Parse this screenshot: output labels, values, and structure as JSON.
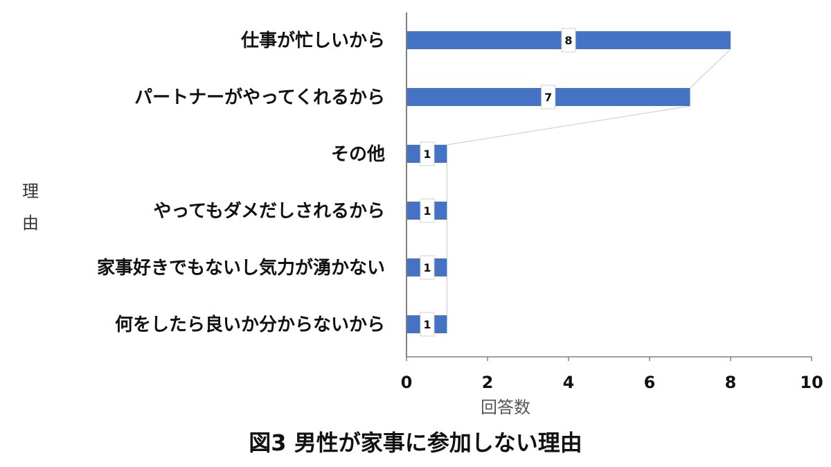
{
  "chart_data": {
    "type": "bar",
    "orientation": "horizontal",
    "categories": [
      "仕事が忙しいから",
      "パートナーがやってくれるから",
      "その他",
      "やってもダメだしされるから",
      "家事好きでもないし気力が湧かない",
      "何をしたら良いか分からないから"
    ],
    "values": [
      8,
      7,
      1,
      1,
      1,
      1
    ],
    "data_labels": [
      "8",
      "7",
      "1",
      "1",
      "1",
      "1"
    ],
    "xlabel": "回答数",
    "ylabel": "理由",
    "xlim": [
      0,
      10
    ],
    "xticks": [
      "0",
      "2",
      "4",
      "6",
      "8",
      "10"
    ],
    "title": "図3 男性が家事に参加しない理由",
    "grid": false,
    "legend": "none",
    "series_lines": true
  },
  "colors": {
    "bar": "#4472C4",
    "series_line": "#c8c8c8",
    "axis": "#808080",
    "label_box_border": "#d0d0d0"
  }
}
